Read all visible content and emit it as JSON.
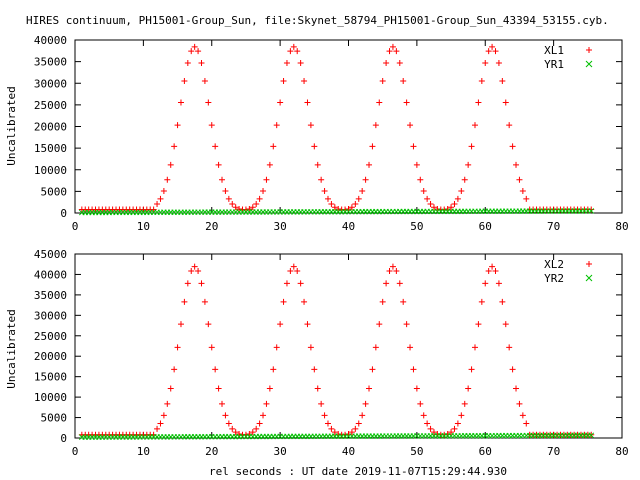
{
  "title": "HIRES continuum, PH15001-Group_Sun, file:Skynet_58794_PH15001-Group_Sun_43394_53155.cyb.",
  "xlabel": "rel seconds : UT date 2019-11-07T15:29:44.930",
  "colors": {
    "x_series": "#ff0000",
    "y_series": "#00c000",
    "axis": "#000000"
  },
  "chart_data": [
    {
      "type": "scatter",
      "ylabel": "Uncalibrated",
      "xlim": [
        0,
        80
      ],
      "ylim": [
        0,
        40000
      ],
      "xticks": [
        0,
        10,
        20,
        30,
        40,
        50,
        60,
        70,
        80
      ],
      "yticks": [
        0,
        5000,
        10000,
        15000,
        20000,
        25000,
        30000,
        35000,
        40000
      ],
      "legend_position": "top-right",
      "x_range": [
        1,
        75.5
      ],
      "x_step": 0.5,
      "series": [
        {
          "name": "XL1",
          "marker": "+",
          "color": "#ff0000",
          "baseline": 800,
          "peak_max": 38000,
          "peak_centers": [
            17.5,
            32,
            46.5,
            61
          ],
          "peak_sigma": 2.2,
          "trough_level": 500
        },
        {
          "name": "YR1",
          "marker": "x",
          "color": "#00c000",
          "baseline": 0,
          "slope": 5,
          "offset": 100
        }
      ]
    },
    {
      "type": "scatter",
      "ylabel": "Uncalibrated",
      "xlim": [
        0,
        80
      ],
      "ylim": [
        0,
        45000
      ],
      "xticks": [
        0,
        10,
        20,
        30,
        40,
        50,
        60,
        70,
        80
      ],
      "yticks": [
        0,
        5000,
        10000,
        15000,
        20000,
        25000,
        30000,
        35000,
        40000,
        45000
      ],
      "legend_position": "top-right",
      "x_range": [
        1,
        75.5
      ],
      "x_step": 0.5,
      "series": [
        {
          "name": "XL2",
          "marker": "+",
          "color": "#ff0000",
          "baseline": 800,
          "peak_max": 41500,
          "peak_centers": [
            17.5,
            32,
            46.5,
            61
          ],
          "peak_sigma": 2.2,
          "trough_level": 500
        },
        {
          "name": "YR2",
          "marker": "x",
          "color": "#00c000",
          "baseline": 0,
          "slope": 6,
          "offset": 200
        }
      ]
    }
  ]
}
